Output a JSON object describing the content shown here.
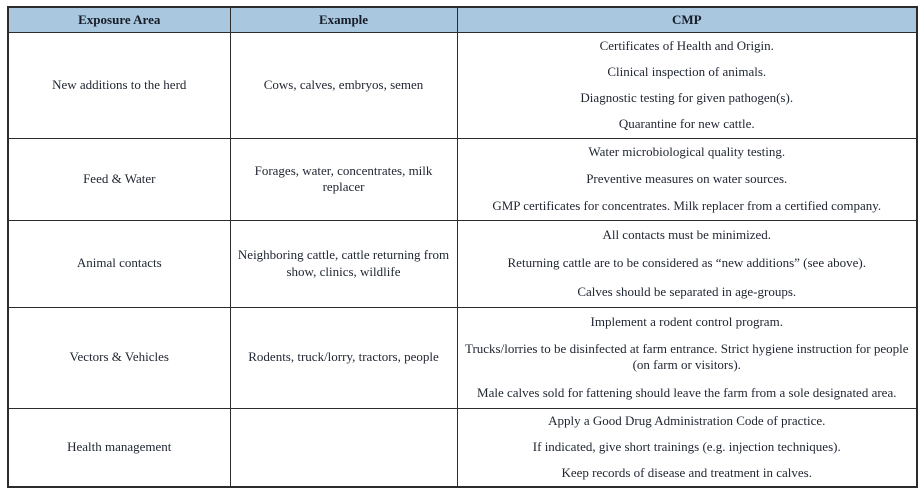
{
  "table": {
    "headers": [
      "Exposure Area",
      "Example",
      "CMP"
    ],
    "rows": [
      {
        "exposure_area": "New additions to the herd",
        "example": "Cows, calves, embryos, semen",
        "cmp": [
          "Certificates of Health and Origin.",
          "Clinical inspection of animals.",
          "Diagnostic testing for given pathogen(s).",
          "Quarantine for new cattle."
        ]
      },
      {
        "exposure_area": "Feed & Water",
        "example": "Forages, water, concentrates, milk replacer",
        "cmp": [
          "Water microbiological quality testing.",
          "Preventive measures on water sources.",
          "GMP certificates for concentrates. Milk replacer from a certified company."
        ]
      },
      {
        "exposure_area": "Animal contacts",
        "example": "Neighboring cattle, cattle returning from show, clinics, wildlife",
        "cmp": [
          "All contacts must be minimized.",
          "Returning cattle are to be considered as “new additions” (see above).",
          "Calves should be separated in age-groups."
        ]
      },
      {
        "exposure_area": "Vectors & Vehicles",
        "example": "Rodents, truck/lorry, tractors, people",
        "cmp": [
          "Implement a rodent control program.",
          "Trucks/lorries to be disinfected at farm entrance. Strict hygiene instruction for people (on farm or visitors).",
          "Male calves sold for fattening should leave the farm from a sole designated area."
        ]
      },
      {
        "exposure_area": "Health management",
        "example": "",
        "cmp": [
          "Apply a Good Drug Administration Code of practice.",
          "If indicated, give short trainings (e.g. injection techniques).",
          "Keep records of disease and treatment in calves."
        ]
      }
    ],
    "colors": {
      "header_bg": "#a9c7df",
      "border": "#2c2c2c",
      "text": "#1e2430"
    }
  }
}
